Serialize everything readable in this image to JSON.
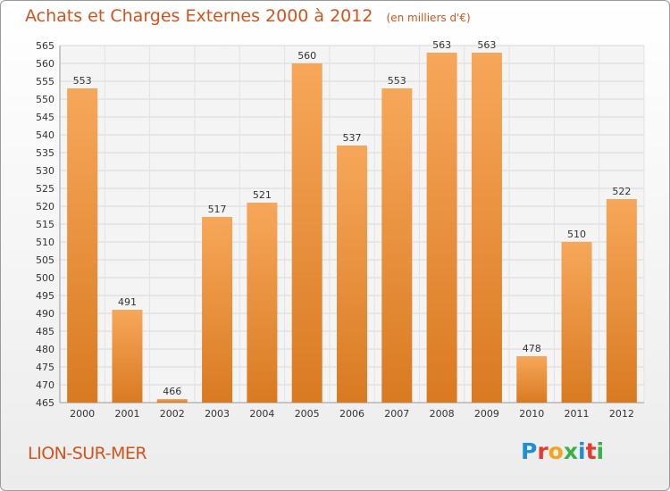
{
  "header": {
    "title": "Achats et Charges Externes 2000 à 2012",
    "unit": "(en milliers d'€)"
  },
  "footer": {
    "place": "LION-SUR-MER",
    "brand": "Proxiti"
  },
  "colors": {
    "bar_light": "#f7a75a",
    "bar_dark": "#d97a22",
    "title": "#d2541d",
    "grid": "#d8d8d8"
  },
  "chart_data": {
    "type": "bar",
    "categories": [
      "2000",
      "2001",
      "2002",
      "2003",
      "2004",
      "2005",
      "2006",
      "2007",
      "2008",
      "2009",
      "2010",
      "2011",
      "2012"
    ],
    "values": [
      553,
      491,
      466,
      517,
      521,
      560,
      537,
      553,
      563,
      563,
      478,
      510,
      522
    ],
    "ylim": [
      465,
      565
    ],
    "yticks": [
      465,
      470,
      475,
      480,
      485,
      490,
      495,
      500,
      505,
      510,
      515,
      520,
      525,
      530,
      535,
      540,
      545,
      550,
      555,
      560,
      565
    ],
    "grid": true
  }
}
